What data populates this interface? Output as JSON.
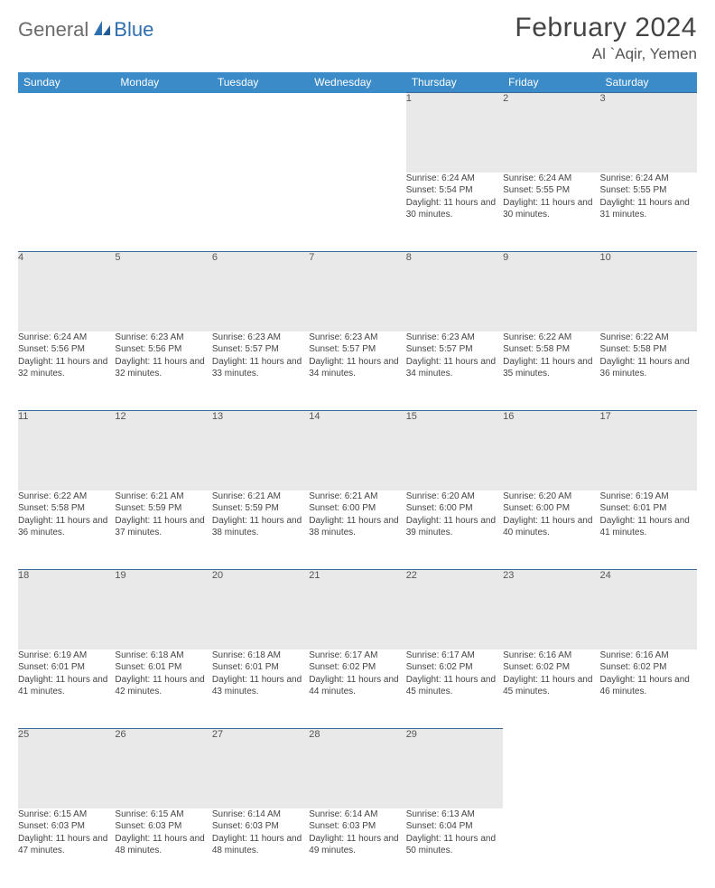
{
  "brand": {
    "part1": "General",
    "part2": "Blue"
  },
  "title": "February 2024",
  "location": "Al `Aqir, Yemen",
  "colors": {
    "header_bg": "#3b8bc9",
    "header_text": "#ffffff",
    "daynum_bg": "#e9e9e9",
    "daynum_border": "#3b6a99",
    "body_text": "#444444",
    "page_bg": "#ffffff",
    "logo_gray": "#6b6b6b",
    "logo_blue": "#2f6fb0"
  },
  "day_headers": [
    "Sunday",
    "Monday",
    "Tuesday",
    "Wednesday",
    "Thursday",
    "Friday",
    "Saturday"
  ],
  "weeks": [
    [
      null,
      null,
      null,
      null,
      {
        "d": "1",
        "sr": "6:24 AM",
        "ss": "5:54 PM",
        "dl": "11 hours and 30 minutes."
      },
      {
        "d": "2",
        "sr": "6:24 AM",
        "ss": "5:55 PM",
        "dl": "11 hours and 30 minutes."
      },
      {
        "d": "3",
        "sr": "6:24 AM",
        "ss": "5:55 PM",
        "dl": "11 hours and 31 minutes."
      }
    ],
    [
      {
        "d": "4",
        "sr": "6:24 AM",
        "ss": "5:56 PM",
        "dl": "11 hours and 32 minutes."
      },
      {
        "d": "5",
        "sr": "6:23 AM",
        "ss": "5:56 PM",
        "dl": "11 hours and 32 minutes."
      },
      {
        "d": "6",
        "sr": "6:23 AM",
        "ss": "5:57 PM",
        "dl": "11 hours and 33 minutes."
      },
      {
        "d": "7",
        "sr": "6:23 AM",
        "ss": "5:57 PM",
        "dl": "11 hours and 34 minutes."
      },
      {
        "d": "8",
        "sr": "6:23 AM",
        "ss": "5:57 PM",
        "dl": "11 hours and 34 minutes."
      },
      {
        "d": "9",
        "sr": "6:22 AM",
        "ss": "5:58 PM",
        "dl": "11 hours and 35 minutes."
      },
      {
        "d": "10",
        "sr": "6:22 AM",
        "ss": "5:58 PM",
        "dl": "11 hours and 36 minutes."
      }
    ],
    [
      {
        "d": "11",
        "sr": "6:22 AM",
        "ss": "5:58 PM",
        "dl": "11 hours and 36 minutes."
      },
      {
        "d": "12",
        "sr": "6:21 AM",
        "ss": "5:59 PM",
        "dl": "11 hours and 37 minutes."
      },
      {
        "d": "13",
        "sr": "6:21 AM",
        "ss": "5:59 PM",
        "dl": "11 hours and 38 minutes."
      },
      {
        "d": "14",
        "sr": "6:21 AM",
        "ss": "6:00 PM",
        "dl": "11 hours and 38 minutes."
      },
      {
        "d": "15",
        "sr": "6:20 AM",
        "ss": "6:00 PM",
        "dl": "11 hours and 39 minutes."
      },
      {
        "d": "16",
        "sr": "6:20 AM",
        "ss": "6:00 PM",
        "dl": "11 hours and 40 minutes."
      },
      {
        "d": "17",
        "sr": "6:19 AM",
        "ss": "6:01 PM",
        "dl": "11 hours and 41 minutes."
      }
    ],
    [
      {
        "d": "18",
        "sr": "6:19 AM",
        "ss": "6:01 PM",
        "dl": "11 hours and 41 minutes."
      },
      {
        "d": "19",
        "sr": "6:18 AM",
        "ss": "6:01 PM",
        "dl": "11 hours and 42 minutes."
      },
      {
        "d": "20",
        "sr": "6:18 AM",
        "ss": "6:01 PM",
        "dl": "11 hours and 43 minutes."
      },
      {
        "d": "21",
        "sr": "6:17 AM",
        "ss": "6:02 PM",
        "dl": "11 hours and 44 minutes."
      },
      {
        "d": "22",
        "sr": "6:17 AM",
        "ss": "6:02 PM",
        "dl": "11 hours and 45 minutes."
      },
      {
        "d": "23",
        "sr": "6:16 AM",
        "ss": "6:02 PM",
        "dl": "11 hours and 45 minutes."
      },
      {
        "d": "24",
        "sr": "6:16 AM",
        "ss": "6:02 PM",
        "dl": "11 hours and 46 minutes."
      }
    ],
    [
      {
        "d": "25",
        "sr": "6:15 AM",
        "ss": "6:03 PM",
        "dl": "11 hours and 47 minutes."
      },
      {
        "d": "26",
        "sr": "6:15 AM",
        "ss": "6:03 PM",
        "dl": "11 hours and 48 minutes."
      },
      {
        "d": "27",
        "sr": "6:14 AM",
        "ss": "6:03 PM",
        "dl": "11 hours and 48 minutes."
      },
      {
        "d": "28",
        "sr": "6:14 AM",
        "ss": "6:03 PM",
        "dl": "11 hours and 49 minutes."
      },
      {
        "d": "29",
        "sr": "6:13 AM",
        "ss": "6:04 PM",
        "dl": "11 hours and 50 minutes."
      },
      null,
      null
    ]
  ],
  "labels": {
    "sunrise": "Sunrise: ",
    "sunset": "Sunset: ",
    "daylight": "Daylight: "
  }
}
